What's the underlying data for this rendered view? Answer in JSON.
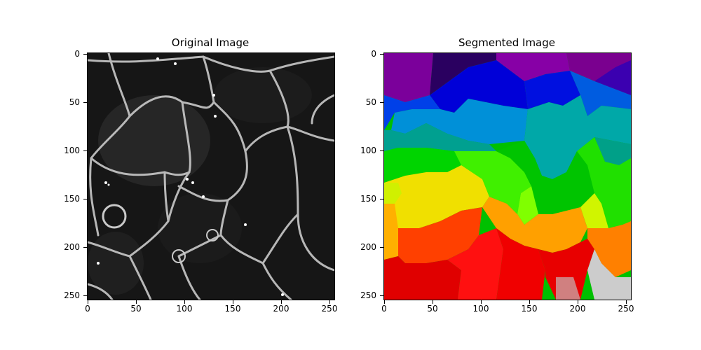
{
  "figure": {
    "panels": [
      {
        "title": "Original Image",
        "image": "grayscale fluorescence micrograph of cell membranes",
        "x_ticks": [
          "0",
          "50",
          "100",
          "150",
          "200",
          "250"
        ],
        "y_ticks": [
          "0",
          "50",
          "100",
          "150",
          "200",
          "250"
        ]
      },
      {
        "title": "Segmented Image",
        "image": "color label map of segmented cells (nipy_spectral-like colormap)",
        "x_ticks": [
          "0",
          "50",
          "100",
          "150",
          "200",
          "250"
        ],
        "y_ticks": [
          "0",
          "50",
          "100",
          "150",
          "200",
          "250"
        ]
      }
    ]
  },
  "colors": {
    "background": "#ffffff",
    "axis": "#000000",
    "original_bg": "#151515",
    "membrane": "#cfcfcf"
  }
}
